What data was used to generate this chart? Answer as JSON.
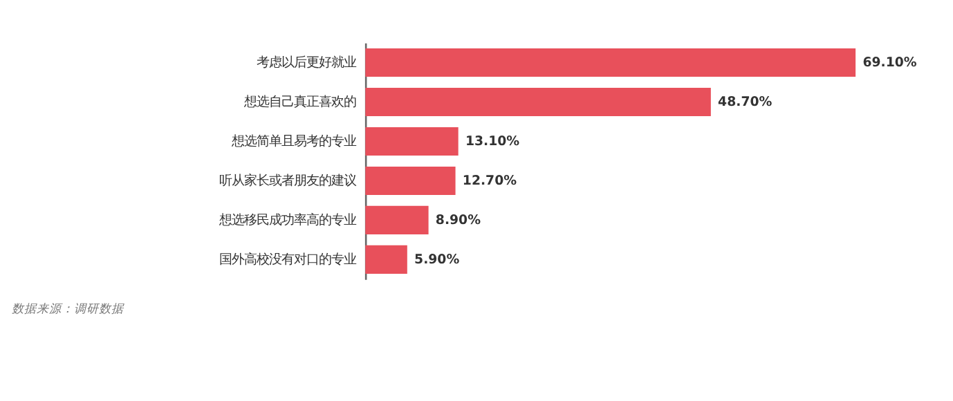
{
  "chart_data": {
    "type": "bar",
    "orientation": "horizontal",
    "categories": [
      "考虑以后更好就业",
      "想选自己真正喜欢的",
      "想选简单且易考的专业",
      "听从家长或者朋友的建议",
      "想选移民成功率高的专业",
      "国外高校没有对口的专业"
    ],
    "values": [
      69.1,
      48.7,
      13.1,
      12.7,
      8.9,
      5.9
    ],
    "color": "#e8505b",
    "value_labels": [
      "69.10%",
      "48.70%",
      "13.10%",
      "12.70%",
      "8.90%",
      "5.90%"
    ],
    "annotations": [
      "数据来源：调研数据"
    ]
  }
}
